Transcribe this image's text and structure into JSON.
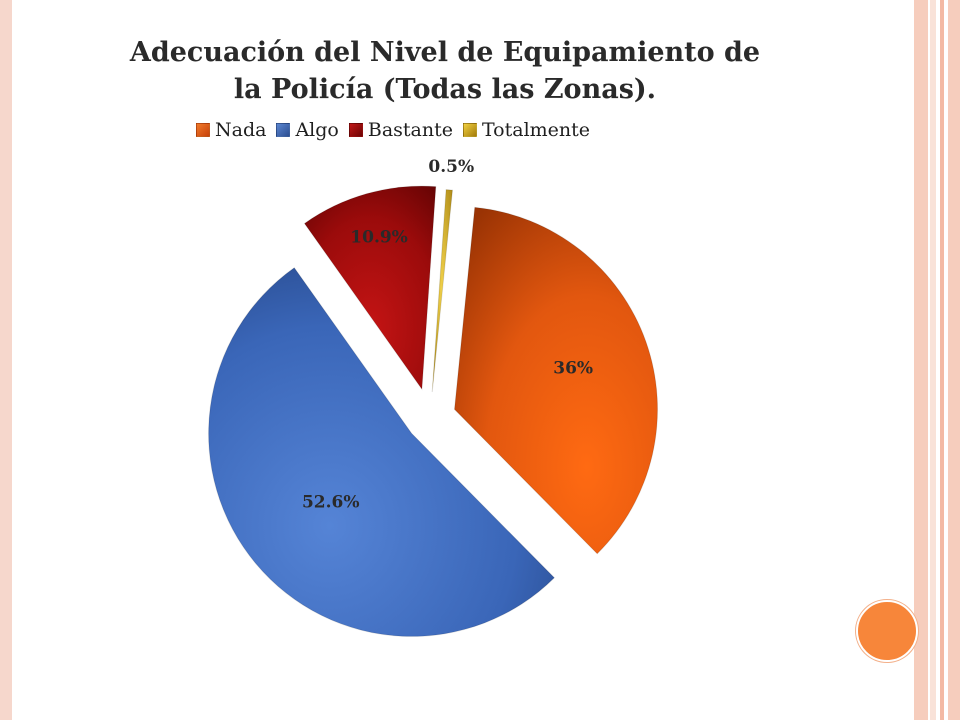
{
  "chart_data": {
    "type": "pie",
    "title": "Adecuación del Nivel de Equipamiento de la Policía (Todas las Zonas).",
    "title_lines": [
      "Adecuación del Nivel de Equipamiento de",
      "la Policía (Todas las Zonas)."
    ],
    "legend_position": "top",
    "series": [
      {
        "name": "Nada",
        "value": 36,
        "label": "36%",
        "color": "#e2570f"
      },
      {
        "name": "Algo",
        "value": 52.6,
        "label": "52.6%",
        "color": "#3a66b8"
      },
      {
        "name": "Bastante",
        "value": 10.9,
        "label": "10.9%",
        "color": "#9b0b0b"
      },
      {
        "name": "Totalmente",
        "value": 0.5,
        "label": "0.5%",
        "color": "#c9a21a"
      }
    ]
  },
  "theme": {
    "left_border": "#f6d7cc",
    "stripe_colors": [
      "#f6cdbd",
      "#f9e2d8",
      "#f3b9a4"
    ],
    "accent_dot": "#f7863a"
  }
}
